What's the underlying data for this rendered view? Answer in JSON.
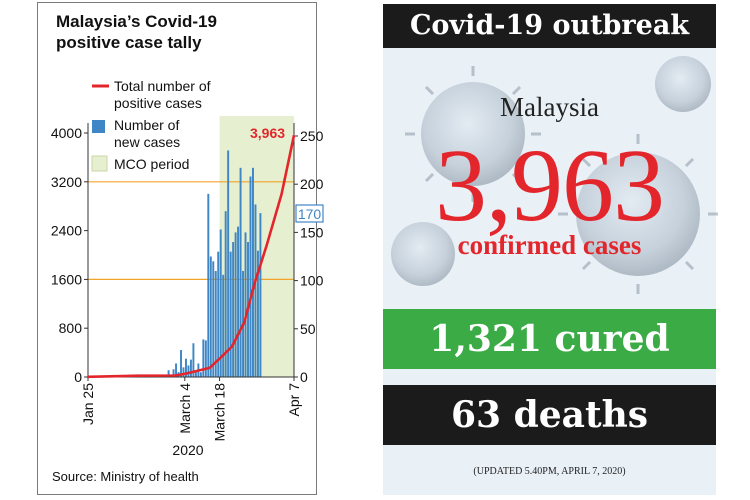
{
  "chart": {
    "title_line1": "Malaysia’s Covid-19",
    "title_line2": "positive case tally",
    "legend": {
      "line": "Total number of positive cases",
      "line_lines": [
        "Total number of",
        "positive cases"
      ],
      "bars": "Number of new cases",
      "bars_lines": [
        "Number of",
        "new cases"
      ],
      "shade": "MCO period"
    },
    "callout_total": "3,963",
    "callout_last_new": "170",
    "year_label": "2020",
    "source": "Source: Ministry of health",
    "colors": {
      "line": "#e3262c",
      "bars": "#3e86c6",
      "shade": "#e6efcf",
      "refline": "#f3a32a",
      "callout_box": "#3e86c6"
    }
  },
  "chart_data": {
    "type": "bar",
    "x_start": "Jan 25",
    "x_end": "Apr 7",
    "x_tick_labels": [
      "Jan 25",
      "March 4",
      "March 18",
      "Apr 7"
    ],
    "left_axis": {
      "label": "",
      "ticks": [
        0,
        800,
        1600,
        2400,
        3200,
        4000
      ],
      "ylim": [
        0,
        4000
      ]
    },
    "right_axis": {
      "label": "",
      "ticks": [
        0,
        50,
        100,
        150,
        200,
        250
      ],
      "ylim": [
        0,
        262
      ]
    },
    "reference_lines_left": [
      3200,
      1600
    ],
    "mco_period": {
      "start": "March 18",
      "end": "Apr 7"
    },
    "series": [
      {
        "name": "Number of new cases",
        "type": "bar",
        "axis": "right",
        "start_offset": 32,
        "values": [
          7,
          2,
          8,
          14,
          5,
          28,
          10,
          19,
          12,
          18,
          35,
          7,
          14,
          5,
          39,
          38,
          190,
          125,
          120,
          110,
          130,
          153,
          106,
          172,
          235,
          130,
          140,
          150,
          156,
          217,
          110,
          150,
          140,
          208,
          217,
          179,
          131,
          170
        ]
      },
      {
        "name": "Total number of positive cases",
        "type": "line",
        "axis": "left",
        "points": [
          [
            0,
            4
          ],
          [
            20,
            22
          ],
          [
            35,
            25
          ],
          [
            39,
            50
          ],
          [
            44,
            100
          ],
          [
            49,
            150
          ],
          [
            53,
            300
          ],
          [
            58,
            500
          ],
          [
            63,
            900
          ],
          [
            67,
            1518
          ],
          [
            72,
            2161
          ],
          [
            78,
            3000
          ],
          [
            83,
            3963
          ]
        ]
      }
    ]
  },
  "panel": {
    "header": "Covid-19 outbreak",
    "country": "Malaysia",
    "confirmed_number": "3,963",
    "confirmed_label": "confirmed cases",
    "cured": "1,321 cured",
    "deaths": "63 deaths",
    "updated": "(UPDATED 5.40PM, APRIL 7, 2020)",
    "colors": {
      "dark": "#1b1b1b",
      "red": "#e3262c",
      "green": "#3aab45",
      "background": "#e9f0f6"
    }
  }
}
